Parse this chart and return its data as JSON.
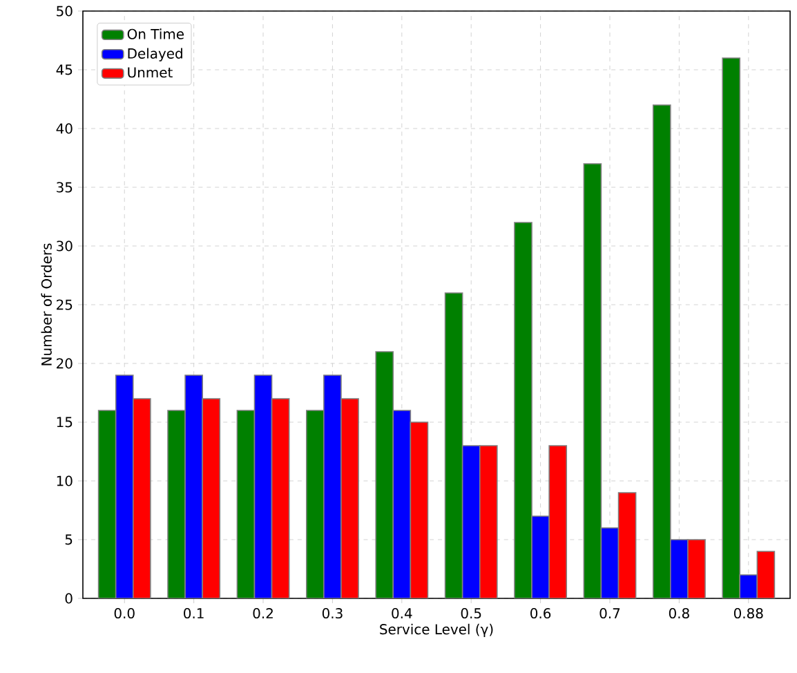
{
  "chart_data": {
    "type": "bar",
    "xlabel": "Service Level (γ)",
    "ylabel": "Number of Orders",
    "categories": [
      "0.0",
      "0.1",
      "0.2",
      "0.3",
      "0.4",
      "0.5",
      "0.6",
      "0.7",
      "0.8",
      "0.88"
    ],
    "series": [
      {
        "name": "On Time",
        "color": "#008000",
        "values": [
          16,
          16,
          16,
          16,
          21,
          26,
          32,
          37,
          42,
          46
        ]
      },
      {
        "name": "Delayed",
        "color": "#0000ff",
        "values": [
          19,
          19,
          19,
          19,
          16,
          13,
          7,
          6,
          5,
          2
        ]
      },
      {
        "name": "Unmet",
        "color": "#ff0000",
        "values": [
          17,
          17,
          17,
          17,
          15,
          13,
          13,
          9,
          5,
          4
        ]
      }
    ],
    "ylim": [
      0,
      50
    ],
    "yticks": [
      0,
      5,
      10,
      15,
      20,
      25,
      30,
      35,
      40,
      45,
      50
    ],
    "grid": true,
    "legend": "top left"
  }
}
